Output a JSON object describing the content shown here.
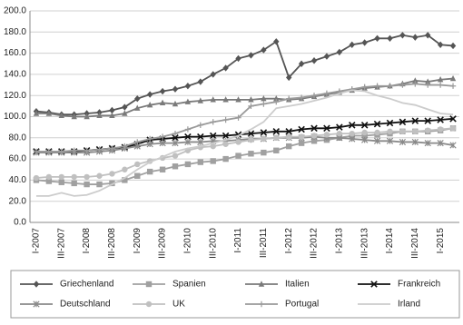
{
  "chart_data": {
    "type": "line",
    "categories": [
      "I-2007",
      null,
      "III-2007",
      null,
      "I-2008",
      null,
      "III-2008",
      null,
      "I-2009",
      null,
      "III-2009",
      null,
      "I-2010",
      null,
      "III-2010",
      null,
      "I-2011",
      null,
      "III-2011",
      null,
      "I-2012",
      null,
      "III-2012",
      null,
      "I-2013",
      null,
      "III-2013",
      null,
      "I-2014",
      null,
      "III-2014",
      null,
      "I-2015",
      null
    ],
    "ylim": [
      0,
      200
    ],
    "yticks": [
      {
        "value": 0,
        "label": "0.0"
      },
      {
        "value": 20,
        "label": "20.0"
      },
      {
        "value": 40,
        "label": "40.0"
      },
      {
        "value": 60,
        "label": "60.0"
      },
      {
        "value": 80,
        "label": "80.0"
      },
      {
        "value": 100,
        "label": "100.0"
      },
      {
        "value": 120,
        "label": "120.0"
      },
      {
        "value": 140,
        "label": "140.0"
      },
      {
        "value": 160,
        "label": "160.0"
      },
      {
        "value": 180,
        "label": "180.0"
      },
      {
        "value": 200,
        "label": "200.0"
      }
    ],
    "grid": true,
    "legend": "bottom",
    "series": [
      {
        "name": "Griechenland",
        "color": "#555555",
        "marker": "diamond",
        "values": [
          105,
          104,
          102,
          102,
          103,
          104,
          106,
          109,
          117,
          121,
          124,
          126,
          129,
          133,
          140,
          146,
          155,
          158,
          163,
          171,
          137,
          150,
          153,
          157,
          161,
          168,
          170,
          174,
          174,
          177,
          175,
          177,
          168,
          167
        ]
      },
      {
        "name": "Spanien",
        "color": "#a0a0a0",
        "marker": "square",
        "values": [
          40,
          39,
          38,
          37,
          36,
          36,
          37,
          40,
          44,
          48,
          50,
          53,
          55,
          57,
          58,
          60,
          63,
          65,
          66,
          68,
          72,
          75,
          77,
          78,
          80,
          82,
          82,
          83,
          84,
          86,
          86,
          86,
          87,
          89
        ]
      },
      {
        "name": "Italien",
        "color": "#7a7a7a",
        "marker": "triangle",
        "values": [
          103,
          103,
          101,
          100,
          100,
          101,
          101,
          103,
          108,
          111,
          113,
          112,
          114,
          115,
          116,
          116,
          116,
          116,
          117,
          117,
          116,
          117,
          119,
          121,
          123,
          125,
          127,
          128,
          129,
          131,
          134,
          133,
          135,
          136
        ]
      },
      {
        "name": "Frankreich",
        "color": "#111111",
        "marker": "x",
        "values": [
          67,
          67,
          67,
          67,
          68,
          69,
          70,
          71,
          74,
          78,
          79,
          80,
          81,
          81,
          82,
          82,
          83,
          84,
          85,
          86,
          86,
          88,
          89,
          89,
          90,
          92,
          92,
          93,
          94,
          95,
          96,
          96,
          97,
          98
        ]
      },
      {
        "name": "Deutschland",
        "color": "#8a8a8a",
        "marker": "asterisk",
        "values": [
          66,
          66,
          66,
          66,
          66,
          67,
          68,
          70,
          72,
          74,
          75,
          75,
          76,
          76,
          77,
          77,
          78,
          79,
          79,
          80,
          80,
          80,
          81,
          80,
          80,
          79,
          78,
          77,
          77,
          76,
          76,
          75,
          75,
          73
        ]
      },
      {
        "name": "UK",
        "color": "#c0c0c0",
        "marker": "circle",
        "values": [
          42,
          43,
          43,
          43,
          43,
          44,
          46,
          50,
          55,
          58,
          61,
          63,
          68,
          71,
          72,
          74,
          76,
          78,
          79,
          80,
          81,
          81,
          82,
          83,
          84,
          84,
          85,
          85,
          86,
          86,
          86,
          87,
          88,
          89
        ]
      },
      {
        "name": "Portugal",
        "color": "#9a9a9a",
        "marker": "plus",
        "values": [
          67,
          67,
          67,
          68,
          68,
          69,
          70,
          72,
          76,
          79,
          81,
          84,
          88,
          92,
          95,
          97,
          99,
          110,
          112,
          114,
          117,
          118,
          120,
          122,
          124,
          126,
          128,
          129,
          129,
          130,
          131,
          130,
          130,
          129
        ]
      },
      {
        "name": "Irland",
        "color": "#cccccc",
        "marker": "none",
        "values": [
          25,
          25,
          28,
          25,
          26,
          30,
          36,
          42,
          50,
          57,
          62,
          67,
          70,
          72,
          75,
          78,
          82,
          88,
          95,
          108,
          110,
          112,
          115,
          118,
          122,
          125,
          124,
          120,
          117,
          113,
          111,
          107,
          103,
          102
        ]
      }
    ]
  }
}
